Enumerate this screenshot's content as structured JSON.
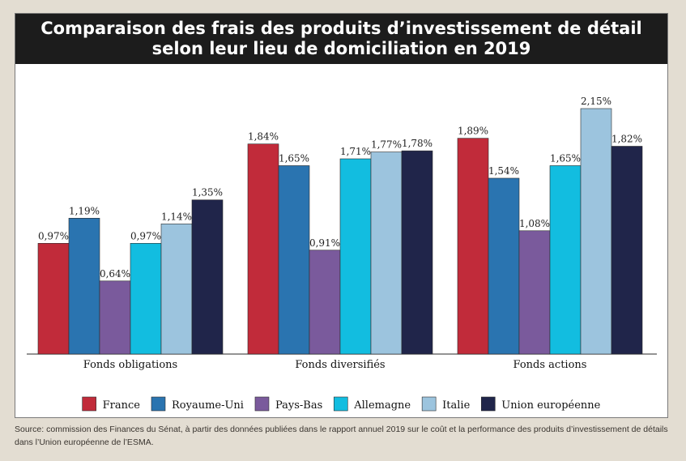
{
  "title": {
    "line1": "Comparaison des frais des produits d’investissement de détail",
    "line2": "selon leur lieu de domiciliation en 2019"
  },
  "source": "Source: commission des Finances du Sénat, à partir des données publiées dans le rapport annuel 2019 sur le coût et la performance des produits d’investissement de détails dans l’Union européenne de l’ESMA.",
  "chart_data": {
    "type": "bar",
    "categories": [
      "Fonds obligations",
      "Fonds diversifiés",
      "Fonds actions"
    ],
    "series": [
      {
        "name": "France",
        "color": "#c12b3a",
        "values": [
          0.97,
          1.84,
          1.89
        ],
        "labels": [
          "0,97%",
          "1,84%",
          "1,89%"
        ]
      },
      {
        "name": "Royaume-Uni",
        "color": "#2a74b0",
        "values": [
          1.19,
          1.65,
          1.54
        ],
        "labels": [
          "1,19%",
          "1,65%",
          "1,54%"
        ]
      },
      {
        "name": "Pays-Bas",
        "color": "#7a5a9c",
        "values": [
          0.64,
          0.91,
          1.08
        ],
        "labels": [
          "0,64%",
          "0,91%",
          "1,08%"
        ]
      },
      {
        "name": "Allemagne",
        "color": "#12bde0",
        "values": [
          0.97,
          1.71,
          1.65
        ],
        "labels": [
          "0,97%",
          "1,71%",
          "1,65%"
        ]
      },
      {
        "name": "Italie",
        "color": "#9cc4de",
        "values": [
          1.14,
          1.77,
          2.15
        ],
        "labels": [
          "1,14%",
          "1,77%",
          "2,15%"
        ]
      },
      {
        "name": "Union européenne",
        "color": "#20254a",
        "values": [
          1.35,
          1.78,
          1.82
        ],
        "labels": [
          "1,35%",
          "1,78%",
          "1,82%"
        ]
      }
    ],
    "ylim": [
      0,
      2.15
    ],
    "grid": false,
    "legend_position": "bottom"
  }
}
